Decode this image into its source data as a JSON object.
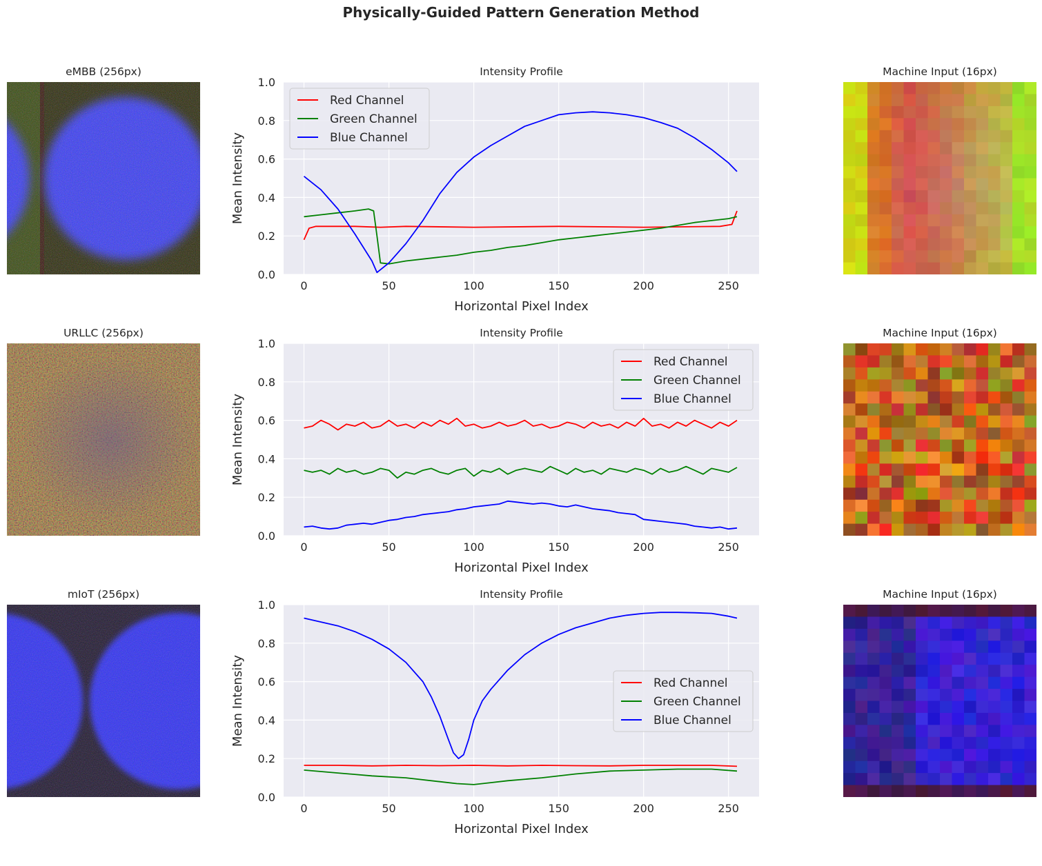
{
  "figure": {
    "title": "Physically-Guided Pattern Generation Method"
  },
  "rows": [
    {
      "image_title": "eMBB (256px)",
      "image_icon": "blue-circle-pattern-image",
      "machine_title": "Machine Input (16px)",
      "machine_icon": "pixelated-16px-image",
      "chart_title": "Intensity Profile"
    },
    {
      "image_title": "URLLC (256px)",
      "image_icon": "noise-pattern-image",
      "machine_title": "Machine Input (16px)",
      "machine_icon": "pixelated-16px-image",
      "chart_title": "Intensity Profile"
    },
    {
      "image_title": "mIoT (256px)",
      "image_icon": "two-blue-circles-image",
      "machine_title": "Machine Input (16px)",
      "machine_icon": "pixelated-16px-image",
      "chart_title": "Intensity Profile"
    }
  ],
  "colors": {
    "axes_bg": "#eaeaf2",
    "grid": "#ffffff",
    "red": "#ff0000",
    "green": "#008000",
    "blue": "#0000ff",
    "text": "#262626"
  },
  "chart_data": [
    {
      "type": "line",
      "title": "Intensity Profile",
      "xlabel": "Horizontal Pixel Index",
      "ylabel": "Mean Intensity",
      "xlim": [
        -12,
        268
      ],
      "ylim": [
        0,
        1.0
      ],
      "xticks": [
        0,
        50,
        100,
        150,
        200,
        250
      ],
      "yticks": [
        0.0,
        0.2,
        0.4,
        0.6,
        0.8,
        1.0
      ],
      "legend_position": "top-left",
      "series": [
        {
          "name": "Red Channel",
          "color": "#ff0000",
          "x": [
            0,
            3,
            7,
            15,
            30,
            45,
            60,
            100,
            150,
            200,
            245,
            252,
            255
          ],
          "y": [
            0.18,
            0.24,
            0.25,
            0.25,
            0.25,
            0.245,
            0.25,
            0.245,
            0.25,
            0.245,
            0.25,
            0.26,
            0.33
          ]
        },
        {
          "name": "Green Channel",
          "color": "#008000",
          "x": [
            0,
            10,
            20,
            30,
            38,
            41,
            43,
            45,
            50,
            60,
            70,
            80,
            90,
            100,
            110,
            120,
            130,
            140,
            150,
            160,
            170,
            180,
            190,
            200,
            210,
            220,
            230,
            240,
            250,
            255
          ],
          "y": [
            0.3,
            0.31,
            0.32,
            0.33,
            0.34,
            0.33,
            0.2,
            0.06,
            0.055,
            0.07,
            0.08,
            0.09,
            0.1,
            0.115,
            0.125,
            0.14,
            0.15,
            0.165,
            0.18,
            0.19,
            0.2,
            0.21,
            0.22,
            0.23,
            0.24,
            0.255,
            0.27,
            0.28,
            0.29,
            0.3
          ]
        },
        {
          "name": "Blue Channel",
          "color": "#0000ff",
          "x": [
            0,
            10,
            20,
            30,
            40,
            43,
            50,
            60,
            70,
            80,
            90,
            100,
            110,
            120,
            130,
            140,
            150,
            160,
            170,
            180,
            190,
            200,
            210,
            220,
            230,
            240,
            250,
            255
          ],
          "y": [
            0.51,
            0.44,
            0.34,
            0.21,
            0.07,
            0.01,
            0.06,
            0.16,
            0.28,
            0.42,
            0.53,
            0.61,
            0.67,
            0.72,
            0.77,
            0.8,
            0.83,
            0.84,
            0.845,
            0.84,
            0.83,
            0.815,
            0.79,
            0.76,
            0.71,
            0.65,
            0.58,
            0.535
          ]
        }
      ]
    },
    {
      "type": "line",
      "title": "Intensity Profile",
      "xlabel": "Horizontal Pixel Index",
      "ylabel": "Mean Intensity",
      "xlim": [
        -12,
        268
      ],
      "ylim": [
        0,
        1.0
      ],
      "xticks": [
        0,
        50,
        100,
        150,
        200,
        250
      ],
      "yticks": [
        0.0,
        0.2,
        0.4,
        0.6,
        0.8,
        1.0
      ],
      "legend_position": "top-right",
      "series": [
        {
          "name": "Red Channel",
          "color": "#ff0000",
          "x": [
            0,
            5,
            10,
            15,
            20,
            25,
            30,
            35,
            40,
            45,
            50,
            55,
            60,
            65,
            70,
            75,
            80,
            85,
            90,
            95,
            100,
            105,
            110,
            115,
            120,
            125,
            130,
            135,
            140,
            145,
            150,
            155,
            160,
            165,
            170,
            175,
            180,
            185,
            190,
            195,
            200,
            205,
            210,
            215,
            220,
            225,
            230,
            235,
            240,
            245,
            250,
            255
          ],
          "y": [
            0.56,
            0.57,
            0.6,
            0.58,
            0.55,
            0.58,
            0.57,
            0.59,
            0.56,
            0.57,
            0.6,
            0.57,
            0.58,
            0.56,
            0.59,
            0.57,
            0.6,
            0.58,
            0.61,
            0.57,
            0.58,
            0.56,
            0.57,
            0.59,
            0.57,
            0.58,
            0.6,
            0.57,
            0.58,
            0.56,
            0.57,
            0.59,
            0.58,
            0.56,
            0.59,
            0.57,
            0.58,
            0.56,
            0.59,
            0.57,
            0.61,
            0.57,
            0.58,
            0.56,
            0.59,
            0.57,
            0.6,
            0.58,
            0.56,
            0.59,
            0.57,
            0.6
          ]
        },
        {
          "name": "Green Channel",
          "color": "#008000",
          "x": [
            0,
            5,
            10,
            15,
            20,
            25,
            30,
            35,
            40,
            45,
            50,
            55,
            60,
            65,
            70,
            75,
            80,
            85,
            90,
            95,
            100,
            105,
            110,
            115,
            120,
            125,
            130,
            135,
            140,
            145,
            150,
            155,
            160,
            165,
            170,
            175,
            180,
            185,
            190,
            195,
            200,
            205,
            210,
            215,
            220,
            225,
            230,
            235,
            240,
            245,
            250,
            255
          ],
          "y": [
            0.34,
            0.33,
            0.34,
            0.32,
            0.35,
            0.33,
            0.34,
            0.32,
            0.33,
            0.35,
            0.34,
            0.3,
            0.33,
            0.32,
            0.34,
            0.35,
            0.33,
            0.32,
            0.34,
            0.35,
            0.31,
            0.34,
            0.33,
            0.35,
            0.32,
            0.34,
            0.35,
            0.34,
            0.33,
            0.36,
            0.34,
            0.32,
            0.35,
            0.33,
            0.34,
            0.32,
            0.35,
            0.34,
            0.33,
            0.35,
            0.34,
            0.32,
            0.35,
            0.33,
            0.34,
            0.36,
            0.34,
            0.32,
            0.35,
            0.34,
            0.33,
            0.355
          ]
        },
        {
          "name": "Blue Channel",
          "color": "#0000ff",
          "x": [
            0,
            5,
            10,
            15,
            20,
            25,
            30,
            35,
            40,
            45,
            50,
            55,
            60,
            65,
            70,
            75,
            80,
            85,
            90,
            95,
            100,
            105,
            110,
            115,
            120,
            125,
            130,
            135,
            140,
            145,
            150,
            155,
            160,
            165,
            170,
            175,
            180,
            185,
            190,
            195,
            200,
            205,
            210,
            215,
            220,
            225,
            230,
            235,
            240,
            245,
            250,
            255
          ],
          "y": [
            0.045,
            0.05,
            0.04,
            0.035,
            0.04,
            0.055,
            0.06,
            0.065,
            0.06,
            0.07,
            0.08,
            0.085,
            0.095,
            0.1,
            0.11,
            0.115,
            0.12,
            0.125,
            0.135,
            0.14,
            0.15,
            0.155,
            0.16,
            0.165,
            0.18,
            0.175,
            0.17,
            0.165,
            0.17,
            0.165,
            0.155,
            0.15,
            0.16,
            0.15,
            0.14,
            0.135,
            0.13,
            0.12,
            0.115,
            0.11,
            0.085,
            0.08,
            0.075,
            0.07,
            0.065,
            0.06,
            0.05,
            0.045,
            0.04,
            0.045,
            0.035,
            0.04
          ]
        }
      ]
    },
    {
      "type": "line",
      "title": "Intensity Profile",
      "xlabel": "Horizontal Pixel Index",
      "ylabel": "Mean Intensity",
      "xlim": [
        -12,
        268
      ],
      "ylim": [
        0,
        1.0
      ],
      "xticks": [
        0,
        50,
        100,
        150,
        200,
        250
      ],
      "yticks": [
        0.0,
        0.2,
        0.4,
        0.6,
        0.8,
        1.0
      ],
      "legend_position": "center-right",
      "series": [
        {
          "name": "Red Channel",
          "color": "#ff0000",
          "x": [
            0,
            20,
            40,
            60,
            80,
            100,
            120,
            140,
            160,
            180,
            200,
            220,
            240,
            255
          ],
          "y": [
            0.165,
            0.165,
            0.162,
            0.165,
            0.163,
            0.165,
            0.162,
            0.165,
            0.163,
            0.162,
            0.165,
            0.165,
            0.165,
            0.16
          ]
        },
        {
          "name": "Green Channel",
          "color": "#008000",
          "x": [
            0,
            20,
            40,
            60,
            80,
            90,
            100,
            110,
            120,
            140,
            160,
            180,
            200,
            220,
            240,
            255
          ],
          "y": [
            0.14,
            0.125,
            0.11,
            0.1,
            0.08,
            0.07,
            0.065,
            0.075,
            0.085,
            0.1,
            0.12,
            0.135,
            0.14,
            0.145,
            0.145,
            0.135
          ]
        },
        {
          "name": "Blue Channel",
          "color": "#0000ff",
          "x": [
            0,
            10,
            20,
            30,
            40,
            50,
            60,
            70,
            75,
            80,
            85,
            88,
            91,
            94,
            97,
            100,
            105,
            110,
            120,
            130,
            140,
            150,
            160,
            170,
            180,
            190,
            200,
            210,
            220,
            230,
            240,
            250,
            255
          ],
          "y": [
            0.93,
            0.91,
            0.89,
            0.86,
            0.82,
            0.77,
            0.7,
            0.6,
            0.52,
            0.42,
            0.3,
            0.23,
            0.2,
            0.22,
            0.3,
            0.4,
            0.5,
            0.56,
            0.66,
            0.74,
            0.8,
            0.845,
            0.88,
            0.905,
            0.93,
            0.945,
            0.955,
            0.96,
            0.96,
            0.958,
            0.955,
            0.94,
            0.93
          ]
        }
      ]
    }
  ]
}
